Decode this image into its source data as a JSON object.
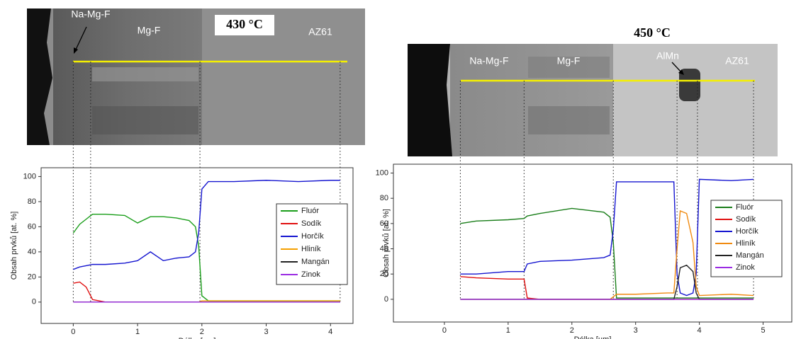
{
  "chart_data": [
    {
      "type": "line",
      "title": "430 °C",
      "annotations": [
        "Na-Mg-F",
        "Mg-F",
        "AZ61"
      ],
      "boundaries": [
        0,
        0.27,
        1.97,
        4.15
      ],
      "x_label": "Délka [µm]",
      "y_label": "Obsah prvků [at. %]",
      "x": [
        0,
        0.1,
        0.2,
        0.3,
        0.5,
        0.8,
        1.0,
        1.2,
        1.4,
        1.6,
        1.8,
        1.9,
        1.95,
        2.0,
        2.1,
        2.5,
        3.0,
        3.5,
        4.0,
        4.15
      ],
      "series": [
        {
          "name": "Fluór",
          "color": "#1a9e1a",
          "values": [
            55,
            62,
            66,
            70,
            70,
            69,
            63,
            68,
            68,
            67,
            65,
            60,
            45,
            5,
            1,
            1,
            1,
            1,
            1,
            1
          ]
        },
        {
          "name": "Sodík",
          "color": "#e01010",
          "values": [
            15,
            16,
            12,
            2,
            0,
            0,
            0,
            0,
            0,
            0,
            0,
            0,
            0,
            0,
            0,
            0,
            0,
            0,
            0,
            0
          ]
        },
        {
          "name": "Horčík",
          "color": "#1515d0",
          "values": [
            26,
            28,
            29,
            30,
            30,
            31,
            33,
            40,
            33,
            35,
            36,
            40,
            55,
            90,
            96,
            96,
            97,
            96,
            97,
            97
          ]
        },
        {
          "name": "Hliník",
          "color": "#f5a000",
          "values": [
            0,
            0,
            0,
            0,
            0,
            0,
            0,
            0,
            0,
            0,
            0,
            0,
            0,
            1,
            1,
            1,
            1,
            1,
            1,
            1
          ]
        },
        {
          "name": "Mangán",
          "color": "#222222",
          "values": [
            0,
            0,
            0,
            0,
            0,
            0,
            0,
            0,
            0,
            0,
            0,
            0,
            0,
            0,
            0,
            0,
            0,
            0,
            0,
            0
          ]
        },
        {
          "name": "Zinok",
          "color": "#9a2be2",
          "values": [
            0,
            0,
            0,
            0,
            0,
            0,
            0,
            0,
            0,
            0,
            0,
            0,
            0,
            0,
            0,
            0,
            0,
            0,
            0,
            0
          ]
        }
      ],
      "xlim": [
        -0.5,
        4.35
      ],
      "ylim": [
        -17,
        107
      ],
      "xticks": [
        0,
        1,
        2,
        3,
        4
      ],
      "yticks": [
        0,
        20,
        40,
        60,
        80,
        100
      ],
      "legend": "right"
    },
    {
      "type": "line",
      "title": "450 °C",
      "annotations": [
        "Na-Mg-F",
        "Mg-F",
        "AlMn",
        "AZ61"
      ],
      "boundaries": [
        0.25,
        1.25,
        2.65,
        3.65,
        3.97,
        4.85
      ],
      "x_label": "Délka [µm]",
      "y_label": "Obsah prvků [at. %]",
      "x": [
        0.25,
        0.5,
        1.0,
        1.25,
        1.3,
        1.5,
        2.0,
        2.5,
        2.6,
        2.65,
        2.7,
        3.0,
        3.5,
        3.6,
        3.65,
        3.7,
        3.8,
        3.9,
        3.95,
        4.0,
        4.5,
        4.85
      ],
      "series": [
        {
          "name": "Fluór",
          "color": "#1a7e1a",
          "values": [
            60,
            62,
            63,
            64,
            66,
            68,
            72,
            69,
            65,
            45,
            1,
            1,
            1,
            1,
            1,
            1,
            1,
            1,
            1,
            1,
            1,
            1
          ]
        },
        {
          "name": "Sodík",
          "color": "#e01010",
          "values": [
            18,
            17,
            16,
            16,
            1,
            0,
            0,
            0,
            0,
            0,
            0,
            0,
            0,
            0,
            0,
            0,
            0,
            0,
            0,
            0,
            0,
            0
          ]
        },
        {
          "name": "Horčík",
          "color": "#1515d0",
          "values": [
            20,
            20,
            22,
            22,
            28,
            30,
            31,
            33,
            35,
            55,
            93,
            93,
            93,
            93,
            20,
            5,
            3,
            5,
            20,
            95,
            94,
            95
          ]
        },
        {
          "name": "Hliník",
          "color": "#f08a10",
          "values": [
            0,
            0,
            0,
            0,
            0,
            0,
            0,
            0,
            0,
            2,
            4,
            4,
            5,
            5,
            40,
            70,
            68,
            45,
            10,
            3,
            4,
            3
          ]
        },
        {
          "name": "Mangán",
          "color": "#222222",
          "values": [
            0,
            0,
            0,
            0,
            0,
            0,
            0,
            0,
            0,
            0,
            0,
            0,
            0,
            0,
            10,
            25,
            27,
            22,
            5,
            0,
            0,
            0
          ]
        },
        {
          "name": "Zinok",
          "color": "#9a2be2",
          "values": [
            0,
            0,
            0,
            0,
            0,
            0,
            0,
            0,
            0,
            0,
            0,
            0,
            0,
            0,
            0,
            0,
            0,
            0,
            0,
            0,
            0,
            0
          ]
        }
      ],
      "xlim": [
        -0.8,
        5.45
      ],
      "ylim": [
        -18,
        107
      ],
      "xticks": [
        0,
        1,
        2,
        3,
        4,
        5
      ],
      "yticks": [
        0,
        20,
        40,
        60,
        80,
        100
      ],
      "legend": "right"
    }
  ]
}
